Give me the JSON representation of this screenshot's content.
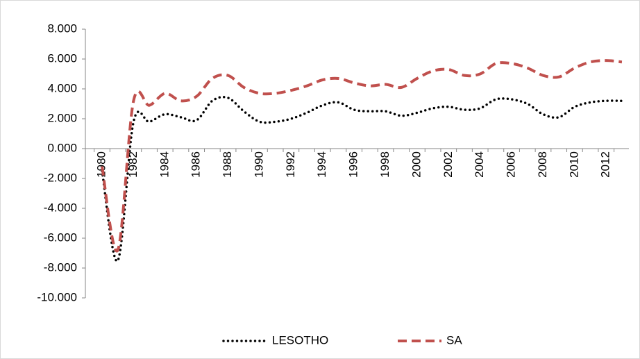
{
  "chart_data": {
    "type": "line",
    "categories": [
      "1980",
      null,
      "1982",
      null,
      "1984",
      null,
      "1986",
      null,
      "1988",
      null,
      "1990",
      null,
      "1992",
      null,
      "1994",
      null,
      "1996",
      null,
      "1998",
      null,
      "2000",
      null,
      "2002",
      null,
      "2004",
      null,
      "2006",
      null,
      "2008",
      null,
      "2010",
      null,
      "2012",
      null
    ],
    "series": [
      {
        "name": "LESOTHO",
        "color": "#000000",
        "style": "dotted",
        "values": [
          -1.5,
          -7.5,
          1.8,
          1.8,
          2.3,
          2.1,
          1.9,
          3.2,
          3.4,
          2.5,
          1.8,
          1.8,
          2.0,
          2.4,
          2.9,
          3.1,
          2.6,
          2.5,
          2.5,
          2.2,
          2.4,
          2.7,
          2.8,
          2.6,
          2.7,
          3.3,
          3.3,
          3.0,
          2.3,
          2.1,
          2.8,
          3.1,
          3.2,
          3.2
        ]
      },
      {
        "name": "SA",
        "color": "#c0504d",
        "style": "dashed",
        "values": [
          -1.2,
          -6.8,
          3.2,
          2.9,
          3.7,
          3.2,
          3.5,
          4.7,
          4.9,
          4.1,
          3.7,
          3.7,
          3.9,
          4.2,
          4.6,
          4.7,
          4.4,
          4.2,
          4.3,
          4.1,
          4.7,
          5.2,
          5.3,
          4.9,
          5.0,
          5.7,
          5.7,
          5.4,
          4.9,
          4.8,
          5.4,
          5.8,
          5.9,
          5.8
        ]
      }
    ],
    "ylim": [
      -10,
      8
    ],
    "yticks": [
      {
        "value": -10,
        "label": "-10.000"
      },
      {
        "value": -8,
        "label": "-8.000"
      },
      {
        "value": -6,
        "label": "-6.000"
      },
      {
        "value": -4,
        "label": "-4.000"
      },
      {
        "value": -2,
        "label": "-2.000"
      },
      {
        "value": 0,
        "label": "0.000"
      },
      {
        "value": 2,
        "label": "2.000"
      },
      {
        "value": 4,
        "label": "4.000"
      },
      {
        "value": 6,
        "label": "6.000"
      },
      {
        "value": 8,
        "label": "8.000"
      }
    ],
    "grid": false,
    "legend": "bottom"
  }
}
